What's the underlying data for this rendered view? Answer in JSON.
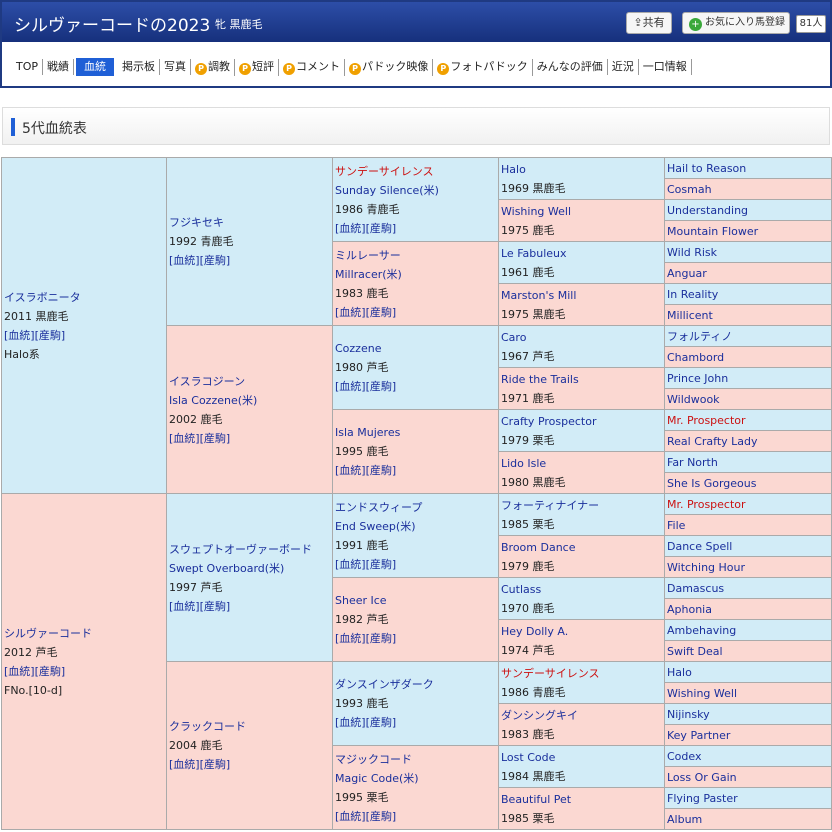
{
  "header": {
    "title": "シルヴァーコードの2023",
    "sex_color": "牝 黒鹿毛",
    "share_label": "共有",
    "fav_label": "お気に入り馬登録",
    "fav_count": "81人"
  },
  "nav": {
    "items": [
      "TOP",
      "戦績",
      "血統",
      "掲示板",
      "写真",
      "調教",
      "短評",
      "コメント",
      "パドック映像",
      "フォトパドック",
      "みんなの評価",
      "近況",
      "一口情報"
    ],
    "premium_icon": "P"
  },
  "section": {
    "title": "5代血統表"
  },
  "pedigree": {
    "links": "[血統][産駒]",
    "sire": {
      "name": "イスラボニータ",
      "year": "2011 黒鹿毛",
      "line": "Halo系"
    },
    "dam": {
      "name": "シルヴァーコード",
      "year": "2012 芦毛",
      "fno": "FNo.[10-d]"
    },
    "g2": [
      {
        "name": "フジキセキ",
        "year": "1992 青鹿毛"
      },
      {
        "name": "イスラコジーン",
        "en": "Isla Cozzene(米)",
        "year": "2002 鹿毛"
      },
      {
        "name": "スウェプトオーヴァーボード",
        "en": "Swept Overboard(米)",
        "year": "1997 芦毛"
      },
      {
        "name": "クラックコード",
        "year": "2004 鹿毛"
      }
    ],
    "g3": [
      {
        "name": "サンデーサイレンス",
        "en": "Sunday Silence(米)",
        "year": "1986 青鹿毛"
      },
      {
        "name": "ミルレーサー",
        "en": "Millracer(米)",
        "year": "1983 鹿毛"
      },
      {
        "name": "Cozzene",
        "year": "1980 芦毛"
      },
      {
        "name": "Isla Mujeres",
        "year": "1995 鹿毛"
      },
      {
        "name": "エンドスウィープ",
        "en": "End Sweep(米)",
        "year": "1991 鹿毛"
      },
      {
        "name": "Sheer Ice",
        "year": "1982 芦毛"
      },
      {
        "name": "ダンスインザダーク",
        "year": "1993 鹿毛"
      },
      {
        "name": "マジックコード",
        "en": "Magic Code(米)",
        "year": "1995 栗毛"
      }
    ],
    "g4": [
      {
        "name": "Halo",
        "year": "1969 黒鹿毛"
      },
      {
        "name": "Wishing Well",
        "year": "1975 鹿毛"
      },
      {
        "name": "Le Fabuleux",
        "year": "1961 鹿毛"
      },
      {
        "name": "Marston's Mill",
        "year": "1975 黒鹿毛"
      },
      {
        "name": "Caro",
        "year": "1967 芦毛"
      },
      {
        "name": "Ride the Trails",
        "year": "1971 鹿毛"
      },
      {
        "name": "Crafty Prospector",
        "year": "1979 栗毛"
      },
      {
        "name": "Lido Isle",
        "year": "1980 黒鹿毛"
      },
      {
        "name": "フォーティナイナー",
        "year": "1985 栗毛"
      },
      {
        "name": "Broom Dance",
        "year": "1979 鹿毛"
      },
      {
        "name": "Cutlass",
        "year": "1970 鹿毛"
      },
      {
        "name": "Hey Dolly A.",
        "year": "1974 芦毛"
      },
      {
        "name": "サンデーサイレンス",
        "year": "1986 青鹿毛"
      },
      {
        "name": "ダンシングキイ",
        "year": "1983 鹿毛"
      },
      {
        "name": "Lost Code",
        "year": "1984 黒鹿毛"
      },
      {
        "name": "Beautiful Pet",
        "year": "1985 栗毛"
      }
    ],
    "g5": [
      "Hail to Reason",
      "Cosmah",
      "Understanding",
      "Mountain Flower",
      "Wild Risk",
      "Anguar",
      "In Reality",
      "Millicent",
      "フォルティノ",
      "Chambord",
      "Prince John",
      "Wildwook",
      "Mr. Prospector",
      "Real Crafty Lady",
      "Far North",
      "She Is Gorgeous",
      "Mr. Prospector",
      "File",
      "Dance Spell",
      "Witching Hour",
      "Damascus",
      "Aphonia",
      "Ambehaving",
      "Swift Deal",
      "Halo",
      "Wishing Well",
      "Nijinsky",
      "Key Partner",
      "Codex",
      "Loss Or Gain",
      "Flying Paster",
      "Album"
    ]
  }
}
